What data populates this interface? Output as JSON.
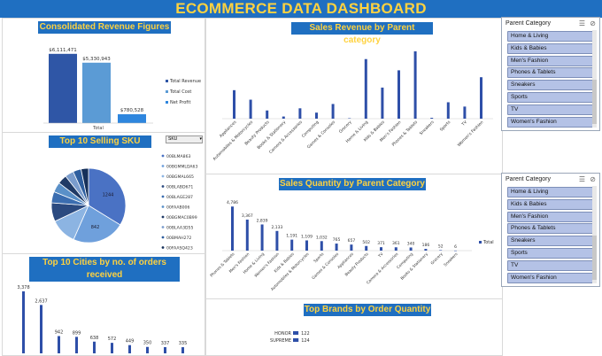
{
  "dashboard_title": "ECOMMERCE DATA DASHBOARD",
  "colors": {
    "accent": "#1f6fc1",
    "title_text": "#ffd23f",
    "bar": "#2e4fa8",
    "slicer_item": "#b4c2e6"
  },
  "panels": {
    "revenue_title": "Consolidated Revenue Figures",
    "sku_title": "Top 10 Selling SKU",
    "cities_title": "Top 10 Cities by no. of orders received",
    "sales_revenue_title": "Sales Revenue by Parent category",
    "sales_qty_title": "Sales Quantity by Parent Category",
    "brands_title": "Top Brands by Order Quantity"
  },
  "chart_data": [
    {
      "id": "consolidated",
      "type": "bar",
      "title": "Consolidated Revenue Figures",
      "categories": [
        "Total"
      ],
      "series": [
        {
          "name": "Total Revenue",
          "values": [
            6111471
          ],
          "label": "$6,111,471",
          "color": "#2f56a6"
        },
        {
          "name": "Total Cost",
          "values": [
            5330943
          ],
          "label": "$5,330,943",
          "color": "#5b9bd5"
        },
        {
          "name": "Net Profit",
          "values": [
            780528
          ],
          "label": "$780,528",
          "color": "#2e86de"
        }
      ],
      "ylim": [
        0,
        6800000
      ],
      "legend": "right"
    },
    {
      "id": "sku_pie",
      "type": "pie",
      "title": "Top 10 Selling SKU",
      "labels": [
        "00BLMA863",
        "00BGMMLDA63",
        "00BGMAL665",
        "00BLABD671",
        "00BLAGE287",
        "00FAAB006",
        "00BGMAC0B99",
        "00BLAA3D55",
        "00BMAH272",
        "00FAASQ423"
      ],
      "values": [
        1244,
        842,
        420,
        300,
        180,
        160,
        150,
        140,
        130,
        120
      ],
      "slice_labels": [
        "1244",
        "842",
        "",
        "",
        "",
        "",
        "",
        "",
        "",
        ""
      ],
      "colors": [
        "#4a72c4",
        "#6fa0dc",
        "#8cb4e2",
        "#2b4a80",
        "#3b6db0",
        "#5a90c8",
        "#1f3a66",
        "#7a9ccc",
        "#2e5e9e",
        "#15305a"
      ],
      "legend": "right"
    },
    {
      "id": "cities",
      "type": "bar",
      "title": "Top 10 Cities by no. of orders received",
      "values": [
        3378,
        2637,
        942,
        899,
        638,
        572,
        449,
        350,
        337,
        335
      ],
      "value_labels": [
        "3,378",
        "2,637",
        "942",
        "899",
        "638",
        "572",
        "449",
        "350",
        "337",
        "335"
      ]
    },
    {
      "id": "sales_revenue",
      "type": "bar",
      "title": "Sales Revenue by Parent category",
      "categories": [
        "Appliances",
        "Automobiles & Motorcycles",
        "Beauty Products",
        "Books & Stationery",
        "Camera & Accessories",
        "Computing",
        "Games & Consoles",
        "Grocery",
        "Home & Living",
        "Kids & Babies",
        "Men's Fashion",
        "Phones & Tablets",
        "Sneakers",
        "Sports",
        "TV",
        "Women's Fashion"
      ],
      "values": [
        330,
        220,
        95,
        25,
        120,
        70,
        170,
        5,
        690,
        360,
        560,
        780,
        10,
        190,
        140,
        480
      ],
      "ylim": [
        0,
        800
      ]
    },
    {
      "id": "sales_qty",
      "type": "bar",
      "title": "Sales Quantity by Parent Category",
      "categories": [
        "Phones & Tablets",
        "Men's Fashion",
        "Home & Living",
        "Women's Fashion",
        "Kids & Babies",
        "Automobiles & Motorcycles",
        "Sports",
        "Games & Consoles",
        "Appliances",
        "Beauty Products",
        "TV",
        "Camera & Accessories",
        "Computing",
        "Books & Stationery",
        "Grocery",
        "Sneakers"
      ],
      "values": [
        4786,
        3367,
        2839,
        2133,
        1191,
        1109,
        1032,
        765,
        657,
        502,
        371,
        361,
        340,
        186,
        52,
        6
      ],
      "value_labels": [
        "4,786",
        "3,367",
        "2,839",
        "2,133",
        "1,191",
        "1,109",
        "1,032",
        "765",
        "657",
        "502",
        "371",
        "361",
        "340",
        "186",
        "52",
        "6"
      ],
      "series_name": "Total",
      "ylim": [
        0,
        5000
      ]
    },
    {
      "id": "brands",
      "type": "bar",
      "title": "Top Brands by Order Quantity",
      "categories": [
        "HONOR",
        "SUPREME"
      ],
      "values": [
        122,
        124
      ],
      "value_labels": [
        "122",
        "124"
      ]
    }
  ],
  "slicer_top": {
    "header": "Parent Category",
    "items": [
      "Home & Living",
      "Kids & Babies",
      "Men's Fashion",
      "Phones & Tablets",
      "Sneakers",
      "Sports",
      "TV",
      "Women's Fashion"
    ]
  },
  "slicer_bottom": {
    "header": "Parent Category",
    "items": [
      "Home & Living",
      "Kids & Babies",
      "Men's Fashion",
      "Phones & Tablets",
      "Sneakers",
      "Sports",
      "TV",
      "Women's Fashion"
    ]
  },
  "sku_header": "SKU"
}
